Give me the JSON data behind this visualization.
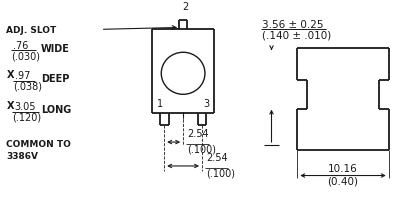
{
  "bg_color": "#ffffff",
  "line_color": "#1a1a1a",
  "top_dim_text": "3.56 ± 0.25",
  "top_dim_text2": "(.140 ± .010)",
  "bottom_dim_text": "10.16",
  "bottom_dim_text2": "(0.40)",
  "dim1_text": "2.54",
  "dim1_text2": "(.100)",
  "dim2_text": "2.54",
  "dim2_text2": "(.100)"
}
